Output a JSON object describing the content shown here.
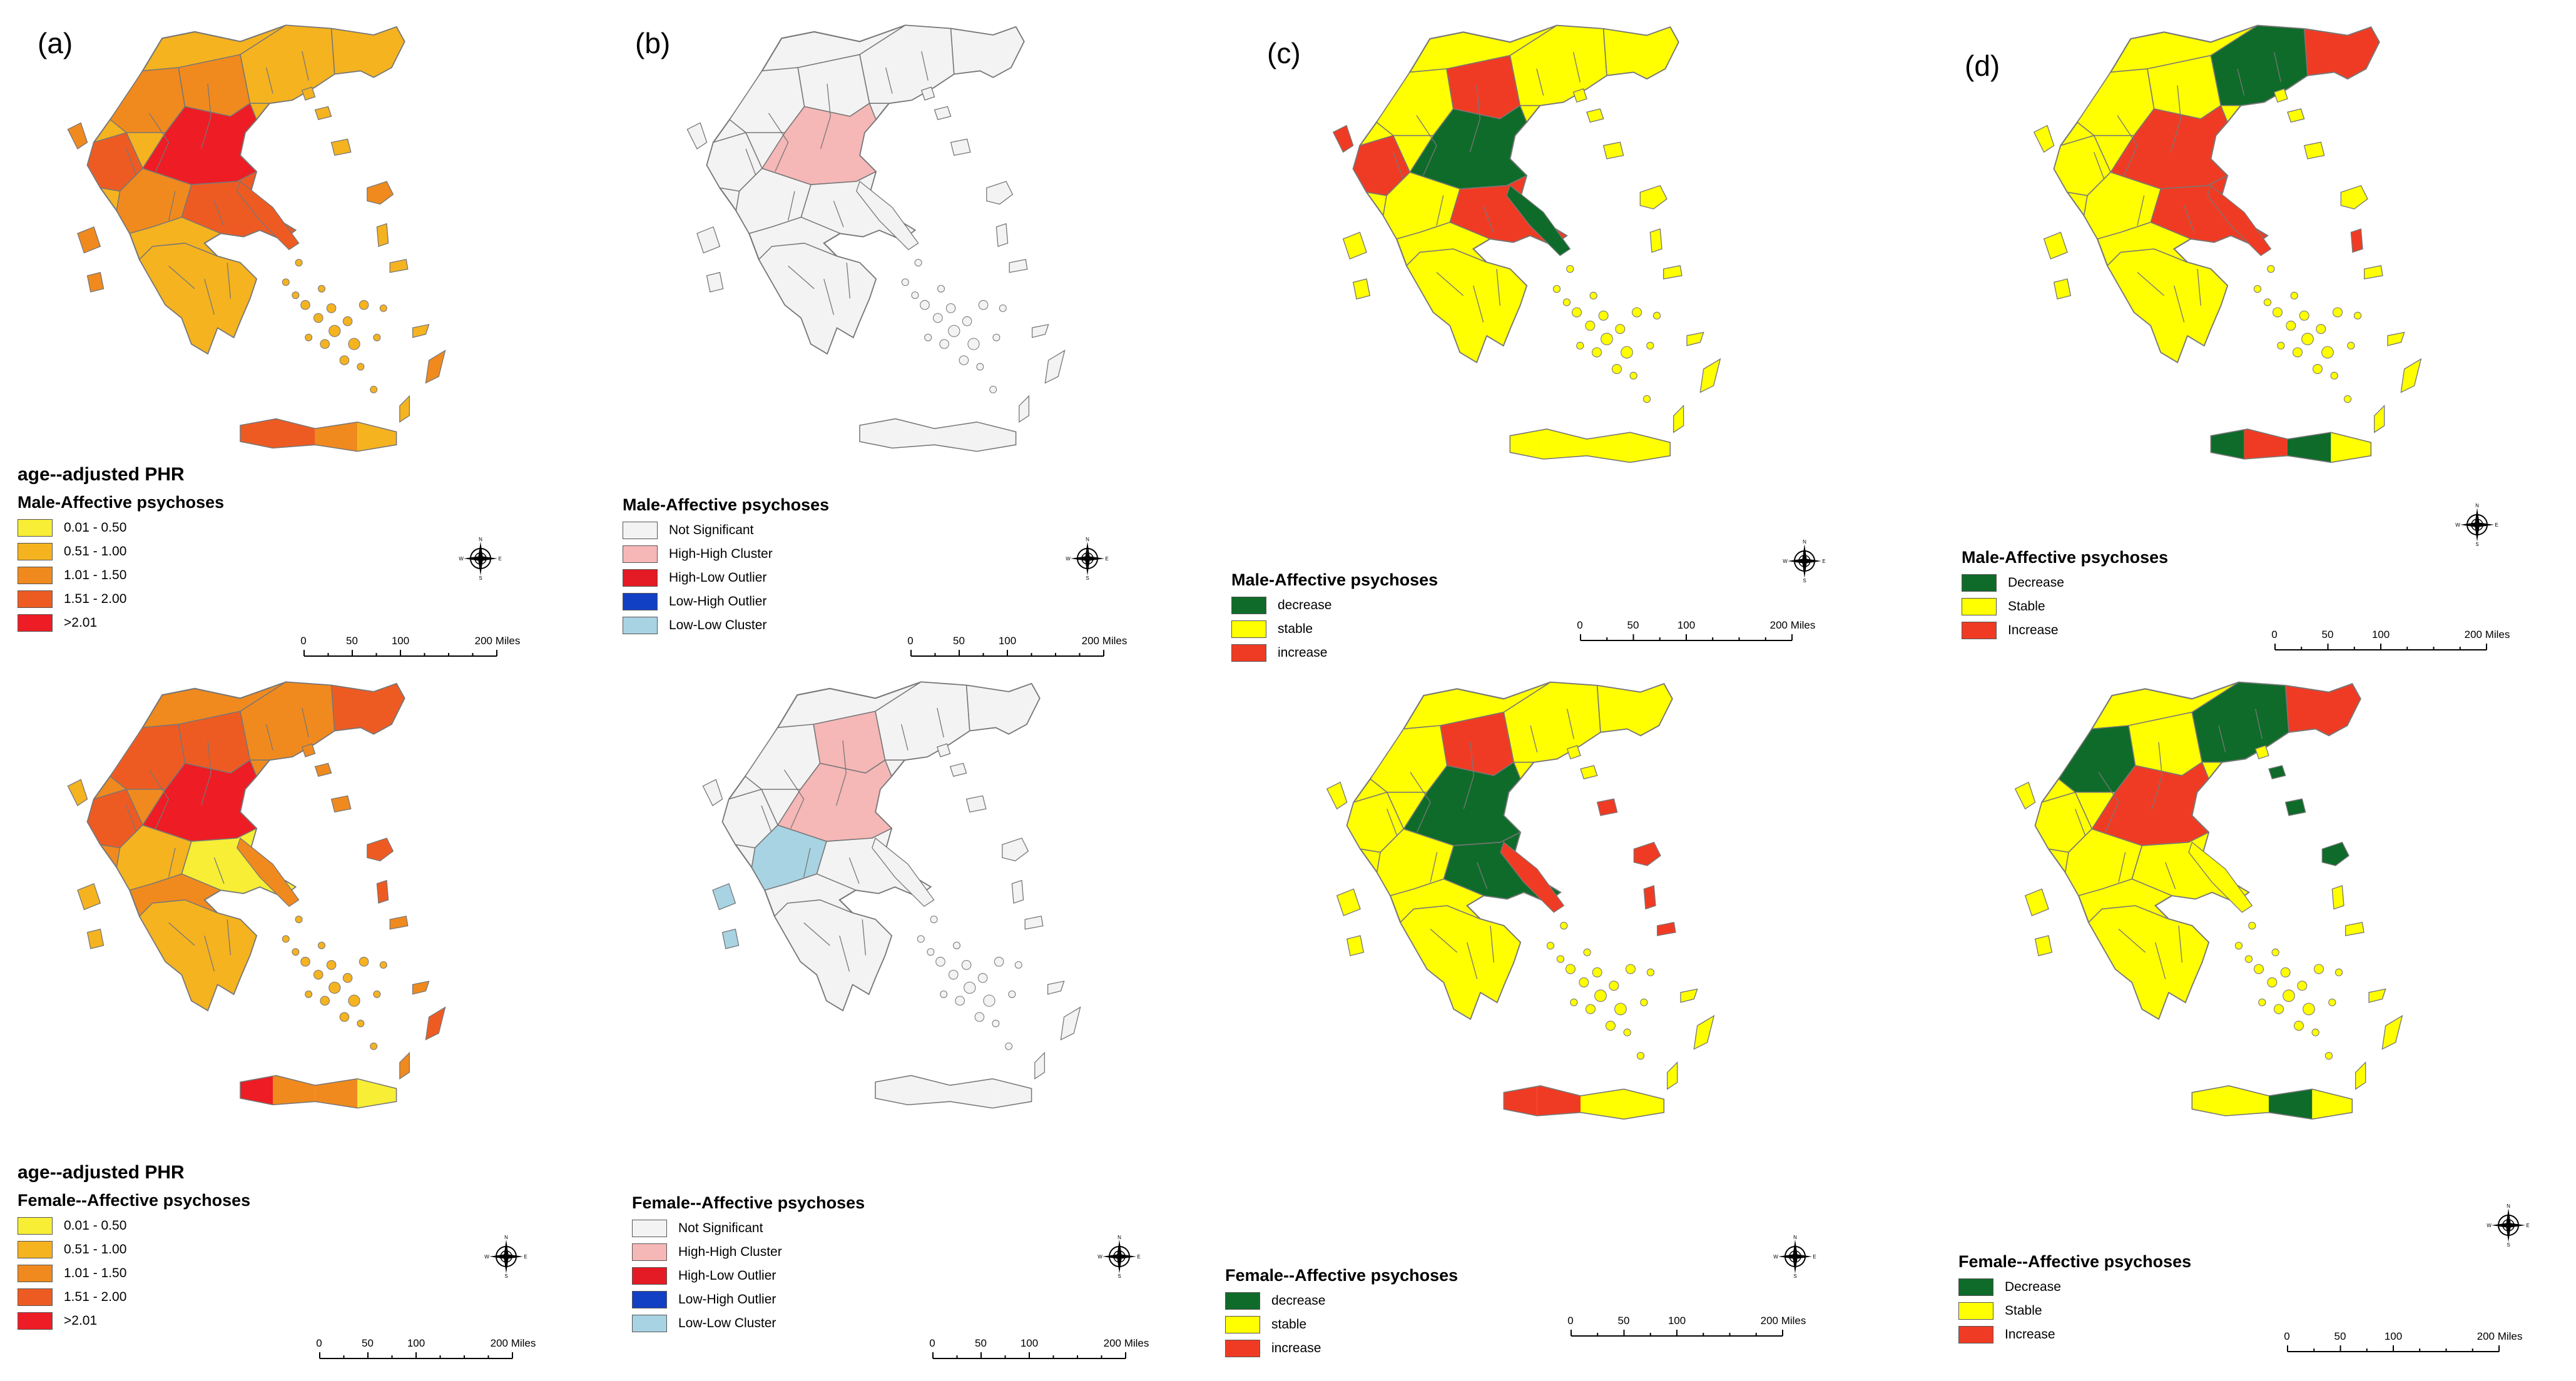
{
  "panel_labels": [
    "(a)",
    "(b)",
    "(c)",
    "(d)"
  ],
  "colors": {
    "phr": [
      "#f7ee35",
      "#f5b320",
      "#f08a1e",
      "#ee5b22",
      "#ee1c24"
    ],
    "lisa": [
      "#f3f3f3",
      "#f6b7b7",
      "#e41b24",
      "#1240c4",
      "#a8d3e3"
    ],
    "trend": [
      "#0f6b2a",
      "#ffff00",
      "#f03b24"
    ],
    "outline": "#777777"
  },
  "panels": {
    "a_male": {
      "label": "(a)",
      "title": "age--adjusted PHR",
      "subtitle": "Male-Affective psychoses",
      "legend": [
        "0.01 - 0.50",
        "0.51 - 1.00",
        "1.01 - 1.50",
        "1.51 - 2.00",
        ">2.01"
      ]
    },
    "a_female": {
      "title": "age--adjusted PHR",
      "subtitle": "Female--Affective psychoses",
      "legend": [
        "0.01 - 0.50",
        "0.51 - 1.00",
        "1.01 - 1.50",
        "1.51 - 2.00",
        ">2.01"
      ]
    },
    "b_male": {
      "label": "(b)",
      "subtitle": "Male-Affective psychoses",
      "legend": [
        "Not Significant",
        "High-High Cluster",
        "High-Low Outlier",
        "Low-High Outlier",
        "Low-Low Cluster"
      ]
    },
    "b_female": {
      "subtitle": "Female--Affective psychoses",
      "legend": [
        "Not Significant",
        "High-High Cluster",
        "High-Low Outlier",
        "Low-High Outlier",
        "Low-Low Cluster"
      ]
    },
    "c_male": {
      "label": "(c)",
      "subtitle": "Male-Affective psychoses",
      "legend": [
        "decrease",
        "stable",
        "increase"
      ]
    },
    "c_female": {
      "subtitle": "Female--Affective psychoses",
      "legend": [
        "decrease",
        "stable",
        "increase"
      ]
    },
    "d_male": {
      "label": "(d)",
      "subtitle": "Male-Affective psychoses",
      "legend": [
        "Decrease",
        "Stable",
        "Increase"
      ]
    },
    "d_female": {
      "subtitle": "Female--Affective psychoses",
      "legend": [
        "Decrease",
        "Stable",
        "Increase"
      ]
    }
  },
  "scale_bar": {
    "ticks": [
      "0",
      "50",
      "100",
      "200 Miles"
    ]
  },
  "compass": {
    "labels": [
      "N",
      "E",
      "S",
      "W"
    ]
  }
}
